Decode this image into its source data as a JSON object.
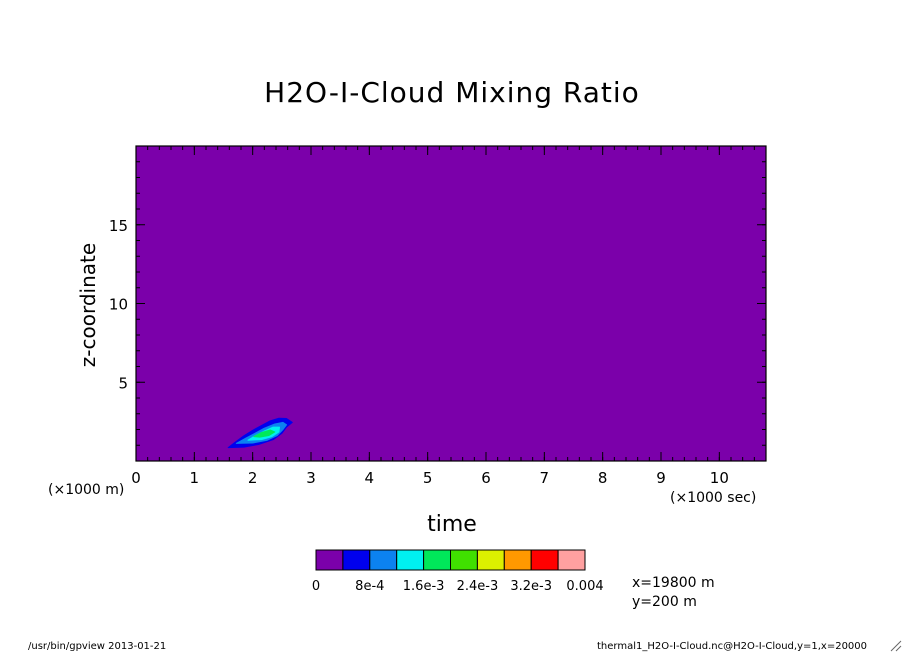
{
  "chart_data": {
    "type": "heatmap",
    "title": "H2O-I-Cloud Mixing Ratio",
    "xlabel": "time",
    "ylabel": "z-coordinate",
    "x_unit": "(×1000 sec)",
    "y_unit": "(×1000 m)",
    "xlim": [
      0,
      10.8
    ],
    "ylim": [
      0,
      20
    ],
    "x_ticks": [
      0,
      1,
      2,
      3,
      4,
      5,
      6,
      7,
      8,
      9,
      10
    ],
    "y_ticks": [
      5,
      10,
      15
    ],
    "x_tick_labels": [
      "0",
      "1",
      "2",
      "3",
      "4",
      "5",
      "6",
      "7",
      "8",
      "9",
      "10"
    ],
    "y_tick_labels": [
      "5",
      "10",
      "15"
    ],
    "background_level_color": "#7b00aa",
    "contour_levels": [
      0,
      0.0008,
      0.0016,
      0.0024,
      0.0032,
      0.004
    ],
    "colorbar": {
      "colors": [
        "#7b00aa",
        "#0000ee",
        "#0c82f0",
        "#00f0f0",
        "#00e85a",
        "#40e000",
        "#dcf000",
        "#ff9900",
        "#ff0000",
        "#ffa0a0"
      ],
      "labels": [
        "0",
        "8e-4",
        "1.6e-3",
        "2.4e-3",
        "3.2e-3",
        "0.004"
      ]
    },
    "contours": [
      {
        "level": 0,
        "color": "#0000ee",
        "points": [
          [
            1.58,
            0.85
          ],
          [
            1.7,
            1.2
          ],
          [
            1.85,
            1.6
          ],
          [
            2.0,
            1.95
          ],
          [
            2.15,
            2.25
          ],
          [
            2.3,
            2.55
          ],
          [
            2.45,
            2.72
          ],
          [
            2.58,
            2.7
          ],
          [
            2.68,
            2.45
          ],
          [
            2.58,
            2.15
          ],
          [
            2.5,
            1.75
          ],
          [
            2.35,
            1.35
          ],
          [
            2.1,
            1.05
          ],
          [
            1.85,
            0.88
          ]
        ]
      },
      {
        "level": 0.0008,
        "color": "#0c82f0",
        "points": [
          [
            1.72,
            1.12
          ],
          [
            1.88,
            1.45
          ],
          [
            2.05,
            1.78
          ],
          [
            2.2,
            2.08
          ],
          [
            2.38,
            2.35
          ],
          [
            2.52,
            2.45
          ],
          [
            2.58,
            2.3
          ],
          [
            2.52,
            2.0
          ],
          [
            2.42,
            1.62
          ],
          [
            2.25,
            1.32
          ],
          [
            2.0,
            1.14
          ]
        ]
      },
      {
        "level": 0.0016,
        "color": "#00f0f0",
        "points": [
          [
            1.92,
            1.32
          ],
          [
            2.05,
            1.62
          ],
          [
            2.2,
            1.9
          ],
          [
            2.35,
            2.15
          ],
          [
            2.46,
            2.15
          ],
          [
            2.45,
            1.85
          ],
          [
            2.33,
            1.55
          ],
          [
            2.15,
            1.36
          ]
        ]
      },
      {
        "level": 0.0024,
        "color": "#00e85a",
        "points": [
          [
            2.02,
            1.55
          ],
          [
            2.15,
            1.8
          ],
          [
            2.3,
            1.97
          ],
          [
            2.38,
            1.85
          ],
          [
            2.28,
            1.62
          ],
          [
            2.12,
            1.52
          ]
        ]
      }
    ]
  },
  "annotations": {
    "x_value": "x=19800  m",
    "y_value": "y=200  m"
  },
  "footer": {
    "left": "/usr/bin/gpview  2013-01-21",
    "right": "thermal1_H2O-I-Cloud.nc@H2O-I-Cloud,y=1,x=20000"
  }
}
